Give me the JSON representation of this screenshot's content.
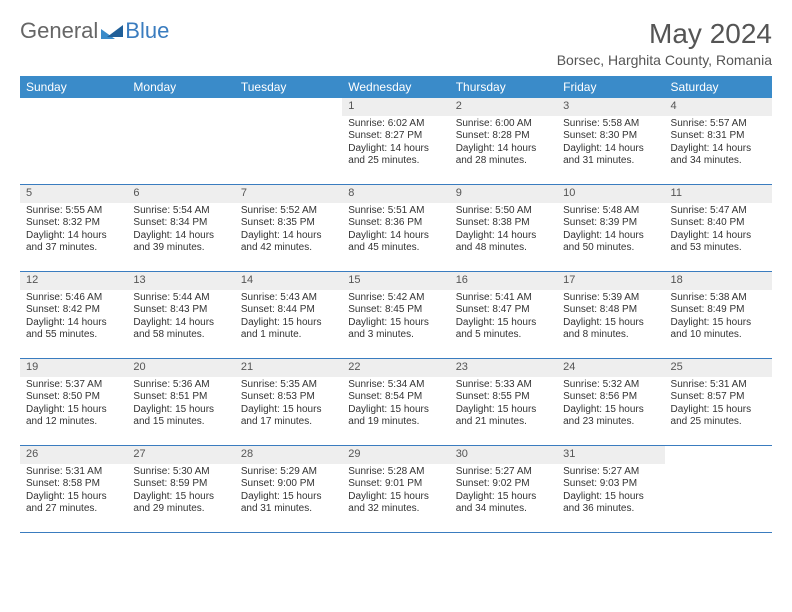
{
  "brand": {
    "part1": "General",
    "part2": "Blue"
  },
  "title": "May 2024",
  "location": "Borsec, Harghita County, Romania",
  "weekdays": [
    "Sunday",
    "Monday",
    "Tuesday",
    "Wednesday",
    "Thursday",
    "Friday",
    "Saturday"
  ],
  "colors": {
    "header_bg": "#3a8bc9",
    "header_text": "#ffffff",
    "daynum_bg": "#eeeeee",
    "border": "#3a7cbf",
    "brand_blue": "#3a8bc9",
    "text": "#333333",
    "title_color": "#555555"
  },
  "weeks": [
    [
      {
        "n": "",
        "sr": "",
        "ss": "",
        "dl": ""
      },
      {
        "n": "",
        "sr": "",
        "ss": "",
        "dl": ""
      },
      {
        "n": "",
        "sr": "",
        "ss": "",
        "dl": ""
      },
      {
        "n": "1",
        "sr": "Sunrise: 6:02 AM",
        "ss": "Sunset: 8:27 PM",
        "dl": "Daylight: 14 hours and 25 minutes."
      },
      {
        "n": "2",
        "sr": "Sunrise: 6:00 AM",
        "ss": "Sunset: 8:28 PM",
        "dl": "Daylight: 14 hours and 28 minutes."
      },
      {
        "n": "3",
        "sr": "Sunrise: 5:58 AM",
        "ss": "Sunset: 8:30 PM",
        "dl": "Daylight: 14 hours and 31 minutes."
      },
      {
        "n": "4",
        "sr": "Sunrise: 5:57 AM",
        "ss": "Sunset: 8:31 PM",
        "dl": "Daylight: 14 hours and 34 minutes."
      }
    ],
    [
      {
        "n": "5",
        "sr": "Sunrise: 5:55 AM",
        "ss": "Sunset: 8:32 PM",
        "dl": "Daylight: 14 hours and 37 minutes."
      },
      {
        "n": "6",
        "sr": "Sunrise: 5:54 AM",
        "ss": "Sunset: 8:34 PM",
        "dl": "Daylight: 14 hours and 39 minutes."
      },
      {
        "n": "7",
        "sr": "Sunrise: 5:52 AM",
        "ss": "Sunset: 8:35 PM",
        "dl": "Daylight: 14 hours and 42 minutes."
      },
      {
        "n": "8",
        "sr": "Sunrise: 5:51 AM",
        "ss": "Sunset: 8:36 PM",
        "dl": "Daylight: 14 hours and 45 minutes."
      },
      {
        "n": "9",
        "sr": "Sunrise: 5:50 AM",
        "ss": "Sunset: 8:38 PM",
        "dl": "Daylight: 14 hours and 48 minutes."
      },
      {
        "n": "10",
        "sr": "Sunrise: 5:48 AM",
        "ss": "Sunset: 8:39 PM",
        "dl": "Daylight: 14 hours and 50 minutes."
      },
      {
        "n": "11",
        "sr": "Sunrise: 5:47 AM",
        "ss": "Sunset: 8:40 PM",
        "dl": "Daylight: 14 hours and 53 minutes."
      }
    ],
    [
      {
        "n": "12",
        "sr": "Sunrise: 5:46 AM",
        "ss": "Sunset: 8:42 PM",
        "dl": "Daylight: 14 hours and 55 minutes."
      },
      {
        "n": "13",
        "sr": "Sunrise: 5:44 AM",
        "ss": "Sunset: 8:43 PM",
        "dl": "Daylight: 14 hours and 58 minutes."
      },
      {
        "n": "14",
        "sr": "Sunrise: 5:43 AM",
        "ss": "Sunset: 8:44 PM",
        "dl": "Daylight: 15 hours and 1 minute."
      },
      {
        "n": "15",
        "sr": "Sunrise: 5:42 AM",
        "ss": "Sunset: 8:45 PM",
        "dl": "Daylight: 15 hours and 3 minutes."
      },
      {
        "n": "16",
        "sr": "Sunrise: 5:41 AM",
        "ss": "Sunset: 8:47 PM",
        "dl": "Daylight: 15 hours and 5 minutes."
      },
      {
        "n": "17",
        "sr": "Sunrise: 5:39 AM",
        "ss": "Sunset: 8:48 PM",
        "dl": "Daylight: 15 hours and 8 minutes."
      },
      {
        "n": "18",
        "sr": "Sunrise: 5:38 AM",
        "ss": "Sunset: 8:49 PM",
        "dl": "Daylight: 15 hours and 10 minutes."
      }
    ],
    [
      {
        "n": "19",
        "sr": "Sunrise: 5:37 AM",
        "ss": "Sunset: 8:50 PM",
        "dl": "Daylight: 15 hours and 12 minutes."
      },
      {
        "n": "20",
        "sr": "Sunrise: 5:36 AM",
        "ss": "Sunset: 8:51 PM",
        "dl": "Daylight: 15 hours and 15 minutes."
      },
      {
        "n": "21",
        "sr": "Sunrise: 5:35 AM",
        "ss": "Sunset: 8:53 PM",
        "dl": "Daylight: 15 hours and 17 minutes."
      },
      {
        "n": "22",
        "sr": "Sunrise: 5:34 AM",
        "ss": "Sunset: 8:54 PM",
        "dl": "Daylight: 15 hours and 19 minutes."
      },
      {
        "n": "23",
        "sr": "Sunrise: 5:33 AM",
        "ss": "Sunset: 8:55 PM",
        "dl": "Daylight: 15 hours and 21 minutes."
      },
      {
        "n": "24",
        "sr": "Sunrise: 5:32 AM",
        "ss": "Sunset: 8:56 PM",
        "dl": "Daylight: 15 hours and 23 minutes."
      },
      {
        "n": "25",
        "sr": "Sunrise: 5:31 AM",
        "ss": "Sunset: 8:57 PM",
        "dl": "Daylight: 15 hours and 25 minutes."
      }
    ],
    [
      {
        "n": "26",
        "sr": "Sunrise: 5:31 AM",
        "ss": "Sunset: 8:58 PM",
        "dl": "Daylight: 15 hours and 27 minutes."
      },
      {
        "n": "27",
        "sr": "Sunrise: 5:30 AM",
        "ss": "Sunset: 8:59 PM",
        "dl": "Daylight: 15 hours and 29 minutes."
      },
      {
        "n": "28",
        "sr": "Sunrise: 5:29 AM",
        "ss": "Sunset: 9:00 PM",
        "dl": "Daylight: 15 hours and 31 minutes."
      },
      {
        "n": "29",
        "sr": "Sunrise: 5:28 AM",
        "ss": "Sunset: 9:01 PM",
        "dl": "Daylight: 15 hours and 32 minutes."
      },
      {
        "n": "30",
        "sr": "Sunrise: 5:27 AM",
        "ss": "Sunset: 9:02 PM",
        "dl": "Daylight: 15 hours and 34 minutes."
      },
      {
        "n": "31",
        "sr": "Sunrise: 5:27 AM",
        "ss": "Sunset: 9:03 PM",
        "dl": "Daylight: 15 hours and 36 minutes."
      },
      {
        "n": "",
        "sr": "",
        "ss": "",
        "dl": ""
      }
    ]
  ]
}
